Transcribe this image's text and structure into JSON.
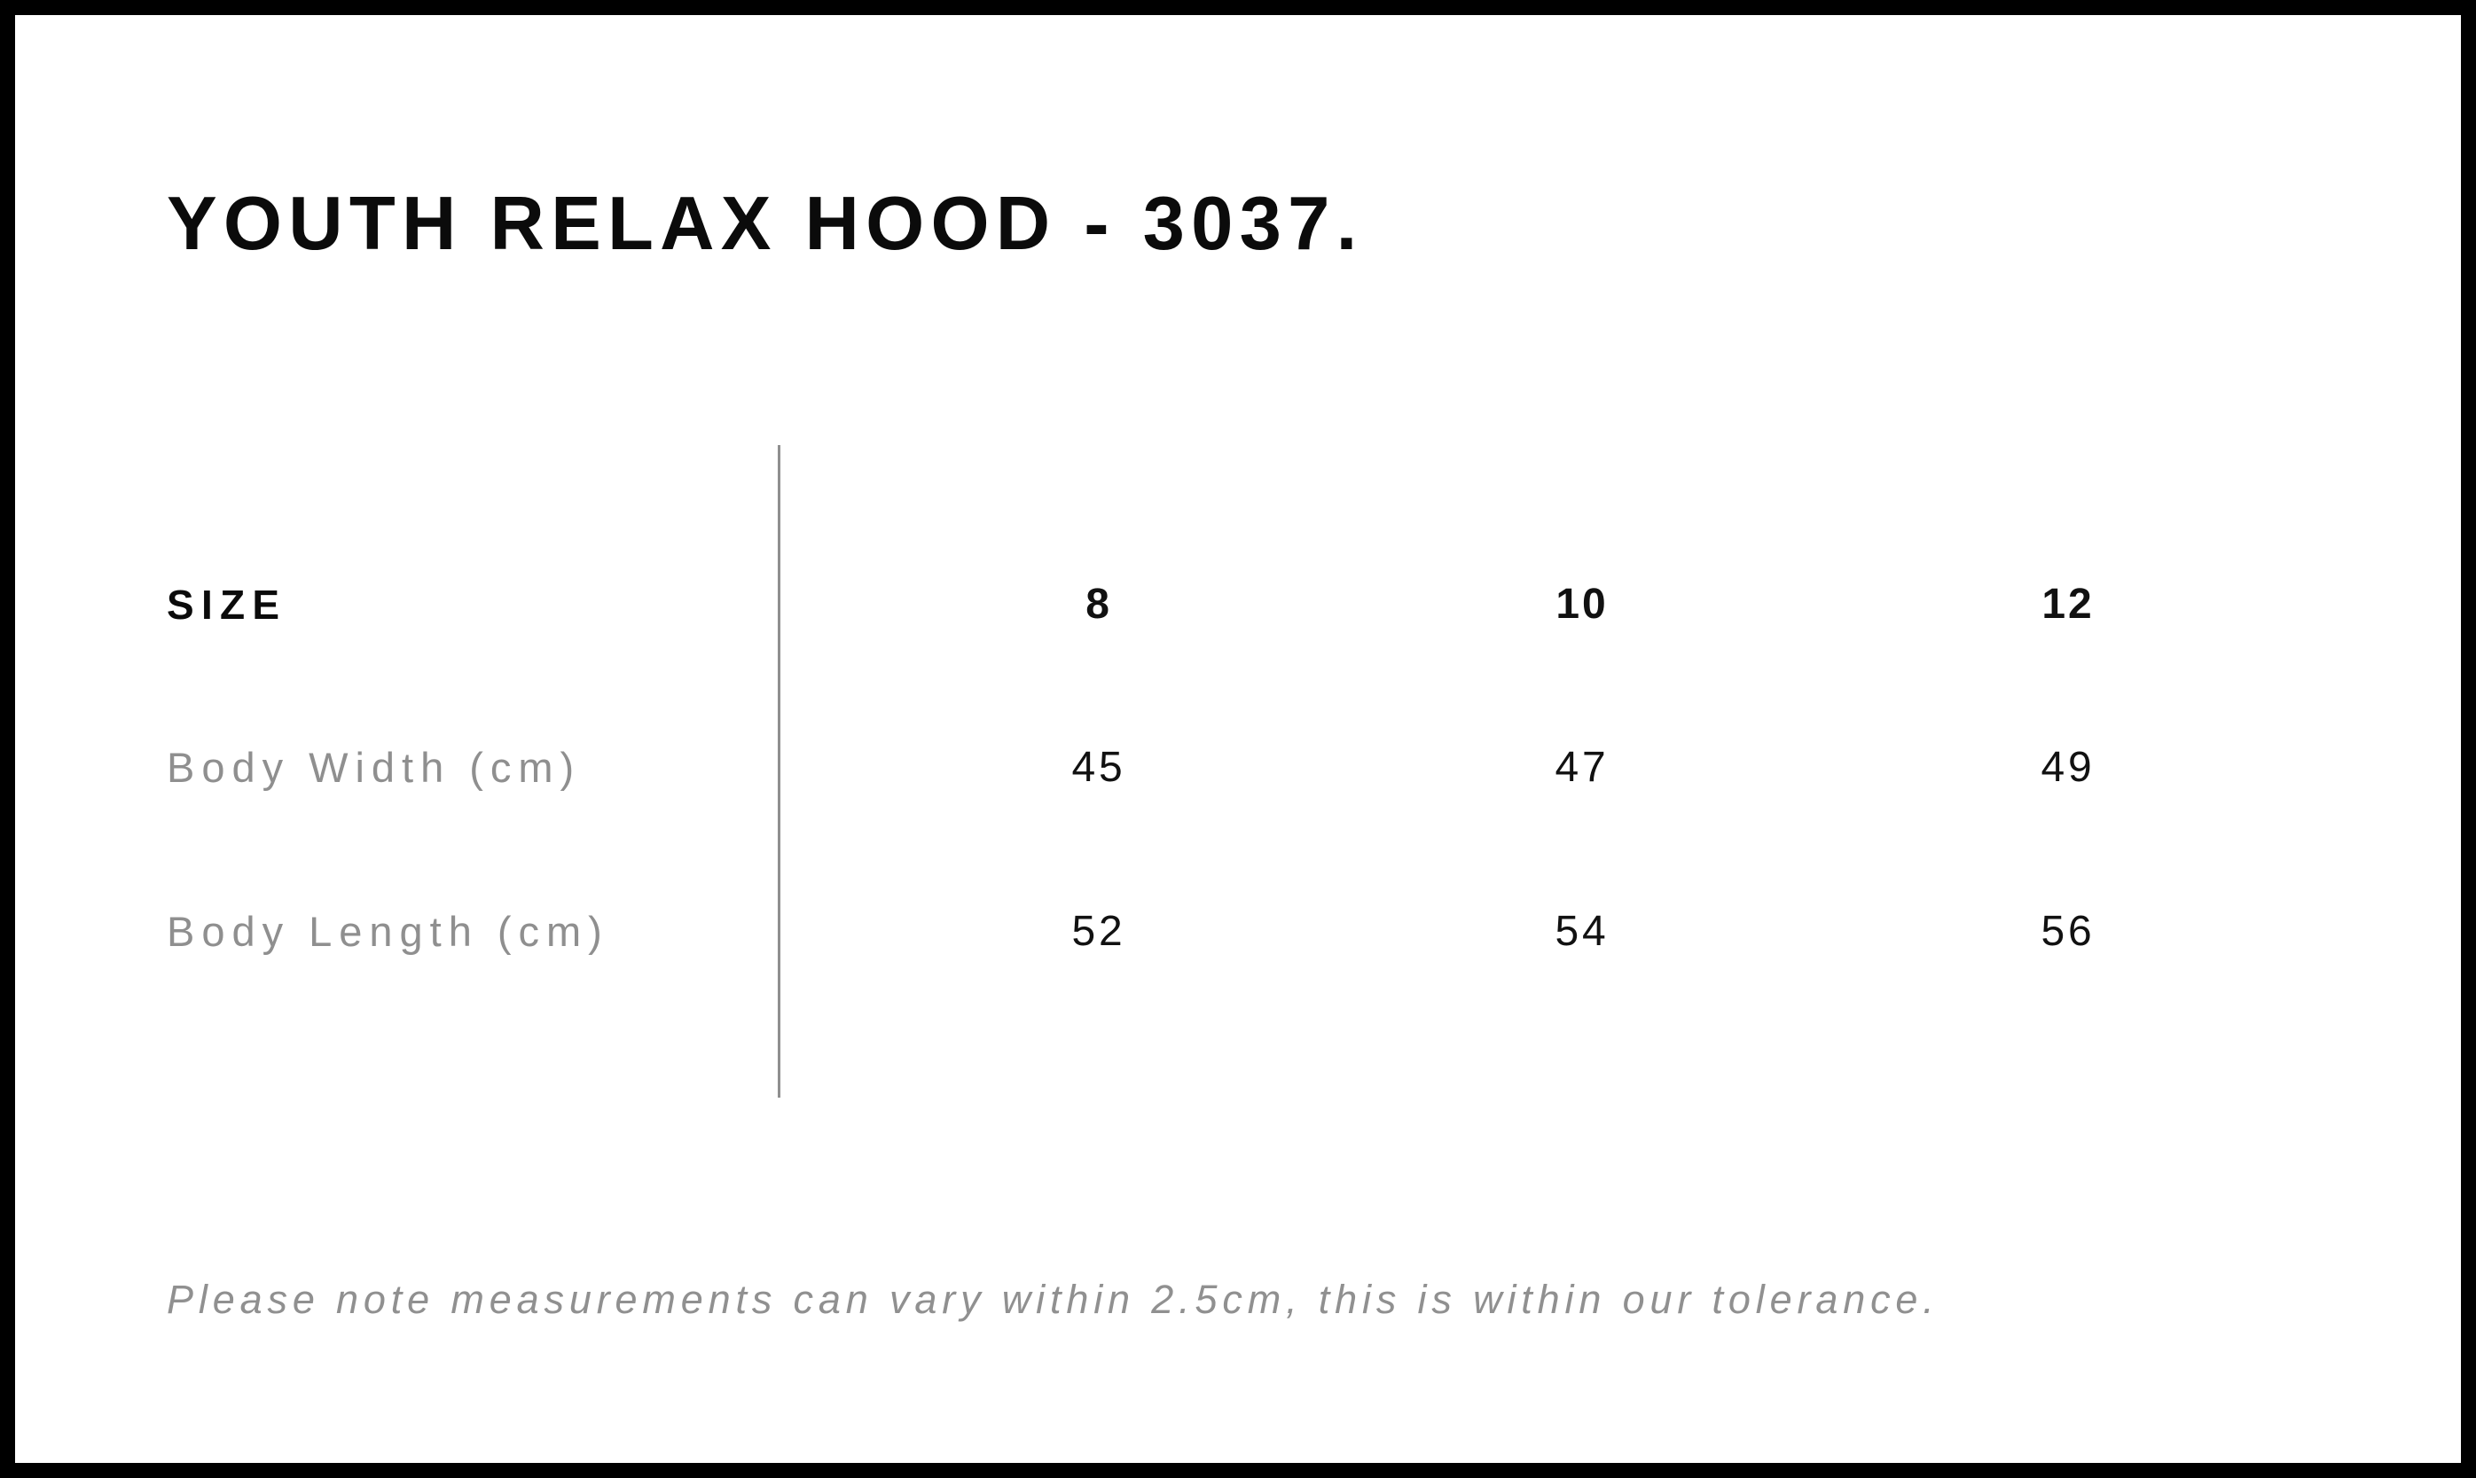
{
  "page": {
    "title": "YOUTH RELAX HOOD - 3037."
  },
  "table": {
    "header": {
      "label": "SIZE",
      "sizes": [
        "8",
        "10",
        "12"
      ]
    },
    "rows": [
      {
        "label": "Body Width (cm)",
        "values": [
          "45",
          "47",
          "49"
        ]
      },
      {
        "label": "Body Length (cm)",
        "values": [
          "52",
          "54",
          "56"
        ]
      }
    ]
  },
  "footer": {
    "note": "Please note measurements can vary within 2.5cm, this is within our tolerance."
  },
  "colors": {
    "background": "#ffffff",
    "border": "#000000",
    "heading_text": "#0b0b0b",
    "value_text": "#111111",
    "muted_text": "#8f8f8f",
    "divider": "#8f8f8f"
  }
}
